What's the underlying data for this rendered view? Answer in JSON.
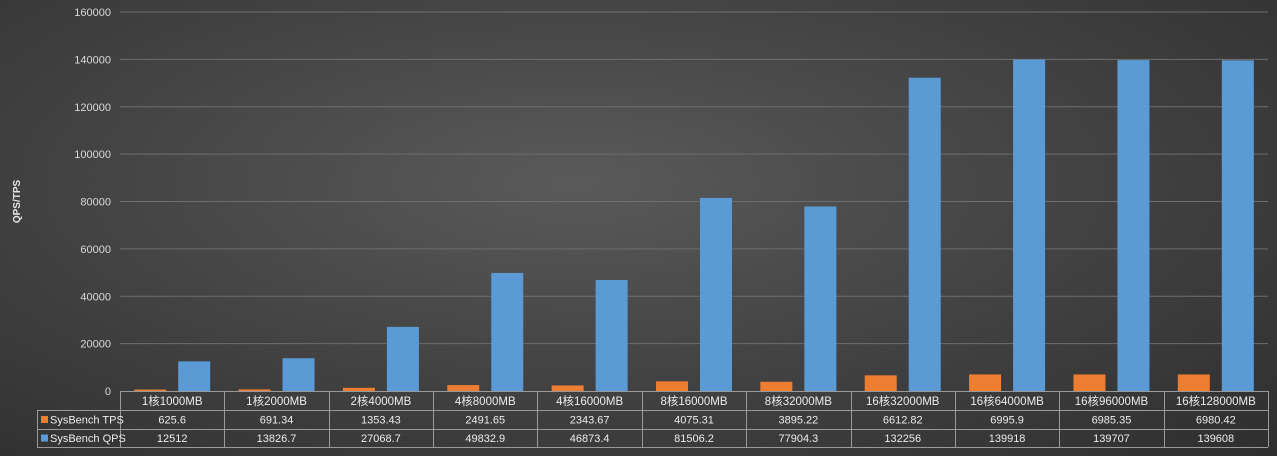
{
  "chart_data": {
    "type": "bar",
    "ylabel": "QPS/TPS",
    "ylim": [
      0,
      160000
    ],
    "yticks": [
      0,
      20000,
      40000,
      60000,
      80000,
      100000,
      120000,
      140000,
      160000
    ],
    "grid": true,
    "legend": "data-table",
    "categories": [
      "1核1000MB",
      "1核2000MB",
      "2核4000MB",
      "4核8000MB",
      "4核16000MB",
      "8核16000MB",
      "8核32000MB",
      "16核32000MB",
      "16核64000MB",
      "16核96000MB",
      "16核128000MB"
    ],
    "series": [
      {
        "name": "SysBench TPS",
        "color": "#ed7d31",
        "values": [
          625.6,
          691.34,
          1353.43,
          2491.65,
          2343.67,
          4075.31,
          3895.22,
          6612.82,
          6995.9,
          6985.35,
          6980.42
        ],
        "labels": [
          "625.6",
          "691.34",
          "1353.43",
          "2491.65",
          "2343.67",
          "4075.31",
          "3895.22",
          "6612.82",
          "6995.9",
          "6985.35",
          "6980.42"
        ]
      },
      {
        "name": "SysBench QPS",
        "color": "#5b9bd5",
        "values": [
          12512,
          13826.7,
          27068.7,
          49832.9,
          46873.4,
          81506.2,
          77904.3,
          132256,
          139918,
          139707,
          139608
        ],
        "labels": [
          "12512",
          "13826.7",
          "27068.7",
          "49832.9",
          "46873.4",
          "81506.2",
          "77904.3",
          "132256",
          "139918",
          "139707",
          "139608"
        ]
      }
    ]
  }
}
